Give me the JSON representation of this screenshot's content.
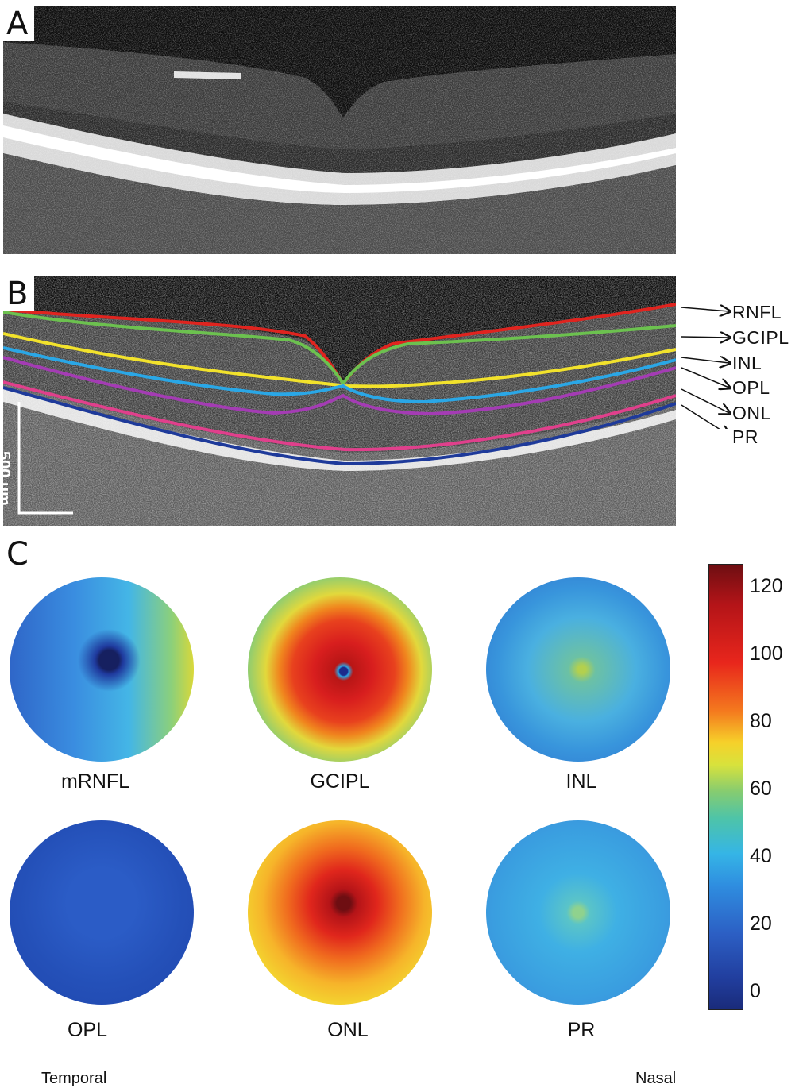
{
  "panels": {
    "a": {
      "letter": "A"
    },
    "b": {
      "letter": "B",
      "scale_bar": "500 μm"
    },
    "c": {
      "letter": "C"
    }
  },
  "layer_labels": [
    "RNFL",
    "GCIPL",
    "INL",
    "OPL",
    "ONL",
    "PR"
  ],
  "layer_colors": {
    "RNFL": "#e0241f",
    "GCIPL": "#6cc14f",
    "INL": "#f2e22c",
    "OPL": "#a43cb4",
    "ONL": "#e0408c",
    "PR": "#1e3a9a",
    "GCIPL_inner": "#2aa7e6"
  },
  "maps": [
    {
      "label": "mRNFL"
    },
    {
      "label": "GCIPL"
    },
    {
      "label": "INL"
    },
    {
      "label": "OPL"
    },
    {
      "label": "ONL"
    },
    {
      "label": "PR"
    }
  ],
  "colorbar": {
    "ticks": [
      "120",
      "100",
      "80",
      "60",
      "40",
      "20",
      "0"
    ]
  },
  "footer": {
    "left": "Temporal",
    "right": "Nasal"
  }
}
